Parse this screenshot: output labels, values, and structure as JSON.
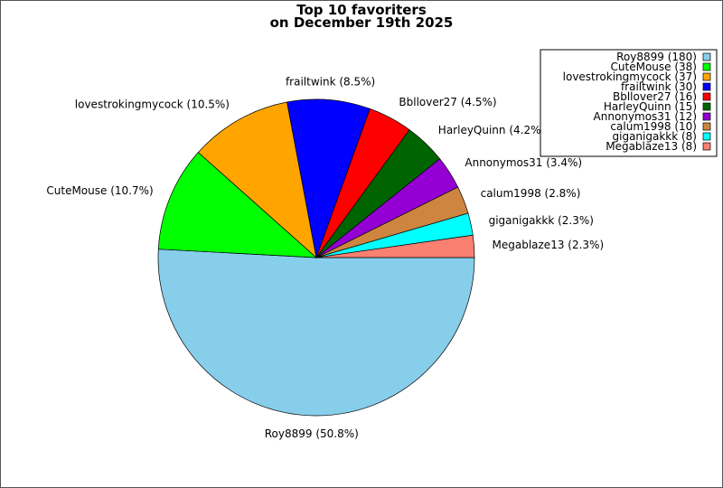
{
  "chart_data": {
    "type": "pie",
    "title": [
      "Top 10 favoriters",
      "on December 19th 2025"
    ],
    "start_angle_deg": 0,
    "direction": "clockwise",
    "legend_position": "top-right",
    "slices": [
      {
        "name": "Roy8899",
        "value": 180,
        "legend": "Roy8899 (180)",
        "label": "Roy8899 (50.8%)",
        "color": "#87CEEB"
      },
      {
        "name": "CuteMouse",
        "value": 38,
        "legend": "CuteMouse (38)",
        "label": "CuteMouse (10.7%)",
        "color": "#00FF00"
      },
      {
        "name": "lovestrokingmycock",
        "value": 37,
        "legend": "lovestrokingmycock (37)",
        "label": "lovestrokingmycock (10.5%)",
        "color": "#FFA500"
      },
      {
        "name": "frailtwink",
        "value": 30,
        "legend": "frailtwink (30)",
        "label": "frailtwink (8.5%)",
        "color": "#0000FF"
      },
      {
        "name": "Bbllover27",
        "value": 16,
        "legend": "Bbllover27 (16)",
        "label": "Bbllover27 (4.5%)",
        "color": "#FF0000"
      },
      {
        "name": "HarleyQuinn",
        "value": 15,
        "legend": "HarleyQuinn (15)",
        "label": "HarleyQuinn (4.2%)",
        "color": "#006400"
      },
      {
        "name": "Annonymos31",
        "value": 12,
        "legend": "Annonymos31 (12)",
        "label": "Annonymos31 (3.4%)",
        "color": "#9400D3"
      },
      {
        "name": "calum1998",
        "value": 10,
        "legend": "calum1998 (10)",
        "label": "calum1998 (2.8%)",
        "color": "#CD853F"
      },
      {
        "name": "giganigakkk",
        "value": 8,
        "legend": "giganigakkk (8)",
        "label": "giganigakkk (2.3%)",
        "color": "#00FFFF"
      },
      {
        "name": "Megablaze13",
        "value": 8,
        "legend": "Megablaze13 (8)",
        "label": "Megablaze13 (2.3%)",
        "color": "#FA8072"
      }
    ]
  }
}
